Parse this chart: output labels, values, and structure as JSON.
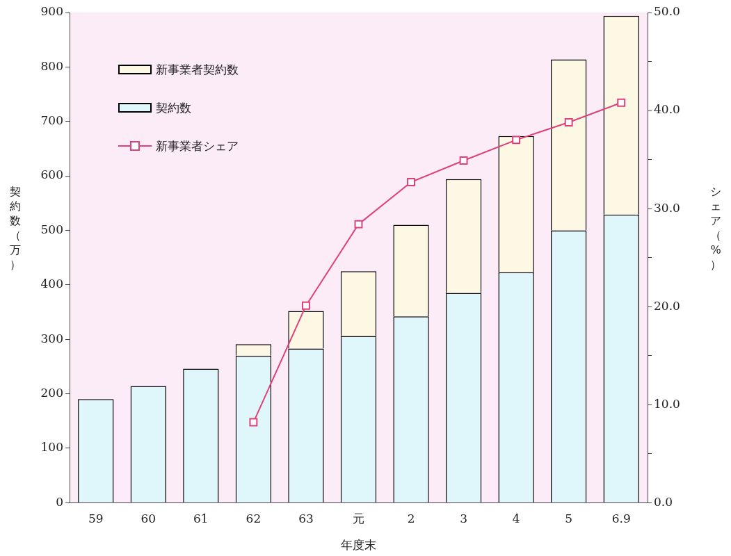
{
  "chart_data": {
    "type": "bar",
    "xlabel": "年度末",
    "ylabel": "契約数（万）",
    "y2label": "シェア（%）",
    "categories": [
      "59",
      "60",
      "61",
      "62",
      "63",
      "元",
      "2",
      "3",
      "4",
      "5",
      "6.9"
    ],
    "stacked": true,
    "series": [
      {
        "name": "契約数",
        "color": "#dff7fb",
        "values": [
          190,
          214,
          246,
          270,
          283,
          306,
          342,
          385,
          423,
          500,
          529
        ]
      },
      {
        "name": "新事業者契約数",
        "color": "#fdf8e4",
        "values": [
          null,
          null,
          null,
          21,
          69,
          119,
          168,
          209,
          250,
          314,
          365
        ]
      },
      {
        "name": "新事業者シェア",
        "type": "line",
        "axis": "y2",
        "color": "#e0407a",
        "values": [
          null,
          null,
          null,
          8.2,
          20.1,
          28.4,
          32.7,
          34.9,
          37.0,
          38.8,
          40.8
        ]
      }
    ],
    "ylim": [
      0,
      900
    ],
    "yticks": [
      0,
      100,
      200,
      300,
      400,
      500,
      600,
      700,
      800,
      900
    ],
    "y2lim": [
      0,
      50
    ],
    "y2ticks": [
      {
        "value": 0,
        "label": "0.0"
      },
      {
        "value": 5,
        "label": null
      },
      {
        "value": 10,
        "label": "10.0"
      },
      {
        "value": 15,
        "label": null
      },
      {
        "value": 20,
        "label": "20.0"
      },
      {
        "value": 25,
        "label": null
      },
      {
        "value": 30,
        "label": "30.0"
      },
      {
        "value": 35,
        "label": null
      },
      {
        "value": 40,
        "label": "40.0"
      },
      {
        "value": 45,
        "label": null
      },
      {
        "value": 50,
        "label": "50.0"
      }
    ],
    "grid": false,
    "legend": "top left",
    "marker": "square",
    "line_style": "solid"
  }
}
